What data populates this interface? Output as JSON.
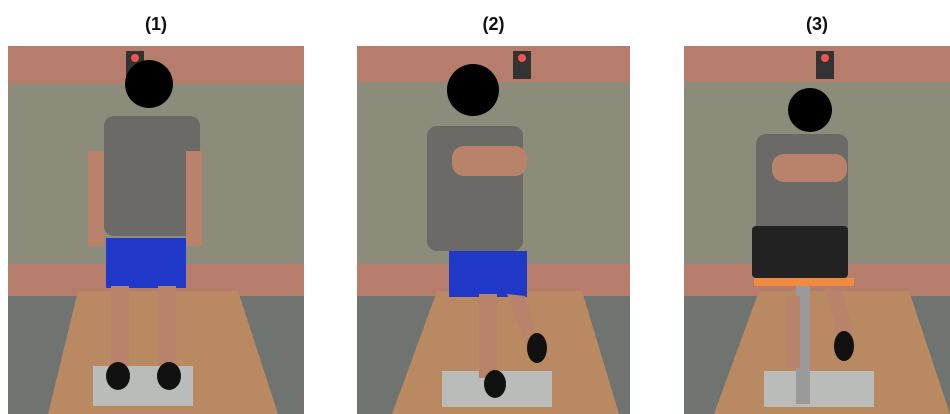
{
  "panels": [
    {
      "caption": "(1)",
      "scene": "standing-both-legs",
      "camera_label": "camera-icon"
    },
    {
      "caption": "(2)",
      "scene": "standing-one-leg",
      "camera_label": "camera-icon"
    },
    {
      "caption": "(3)",
      "scene": "standing-one-leg-with-laptop",
      "camera_label": "camera-icon"
    }
  ],
  "colors": {
    "wall_upper": "#b77d6c",
    "wall_panel": "#8d8b7a",
    "floor_wood": "#b98a62",
    "mat": "#b9bcb8",
    "shirt": "#6b6a66",
    "shorts": "#2139c8",
    "skin": "#b9826b",
    "face_mask": "#000000",
    "laptop": "#222222",
    "laptop_tray": "#f08a40"
  }
}
